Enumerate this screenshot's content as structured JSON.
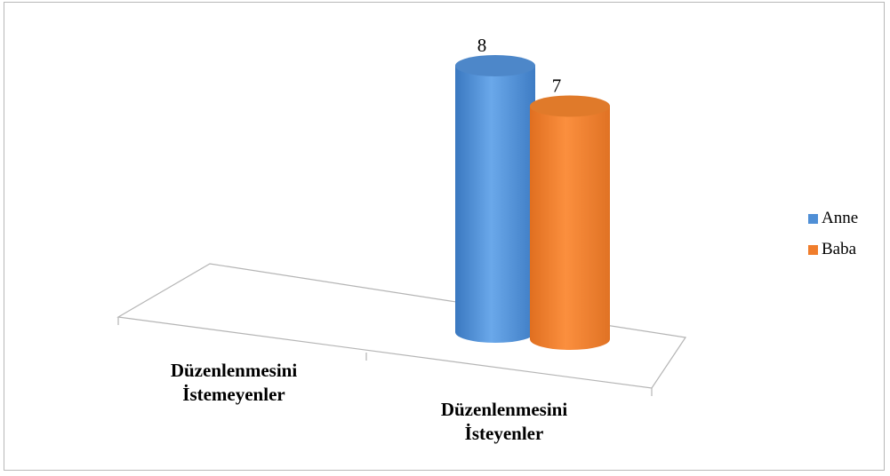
{
  "chart_data": {
    "type": "bar",
    "style": "3d-cylinder",
    "categories": [
      "Düzenlenmesini\nİstemeyenler",
      "Düzenlenmesini\nİsteyenler"
    ],
    "series": [
      {
        "name": "Anne",
        "values": [
          null,
          8
        ],
        "color": "#4f8fd6"
      },
      {
        "name": "Baba",
        "values": [
          null,
          7
        ],
        "color": "#f07d2c"
      }
    ],
    "data_labels": [
      [
        "",
        "8"
      ],
      [
        "",
        "7"
      ]
    ],
    "title": "",
    "xlabel": "",
    "ylabel": "",
    "grid": false,
    "legend_position": "right"
  }
}
